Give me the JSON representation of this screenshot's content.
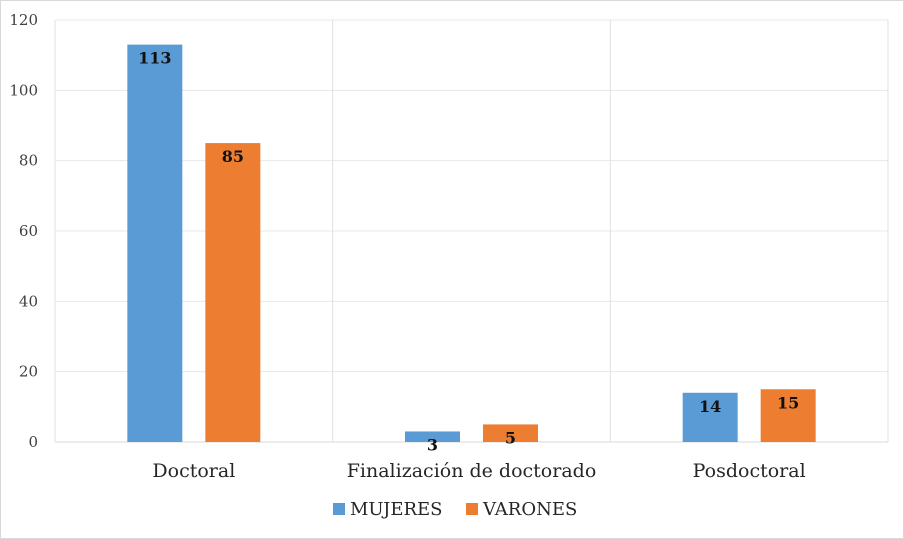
{
  "chart_data": {
    "type": "bar",
    "categories": [
      "Doctoral",
      "Finalización de doctorado",
      "Posdoctoral"
    ],
    "series": [
      {
        "name": "MUJERES",
        "values": [
          113,
          3,
          14
        ],
        "color": "#5b9bd5"
      },
      {
        "name": "VARONES",
        "values": [
          85,
          5,
          15
        ],
        "color": "#ed7d31"
      }
    ],
    "ylim": [
      0,
      120
    ],
    "yticks": [
      0,
      20,
      40,
      60,
      80,
      100,
      120
    ],
    "grid": true,
    "legend": "bottom",
    "data_labels": true
  }
}
